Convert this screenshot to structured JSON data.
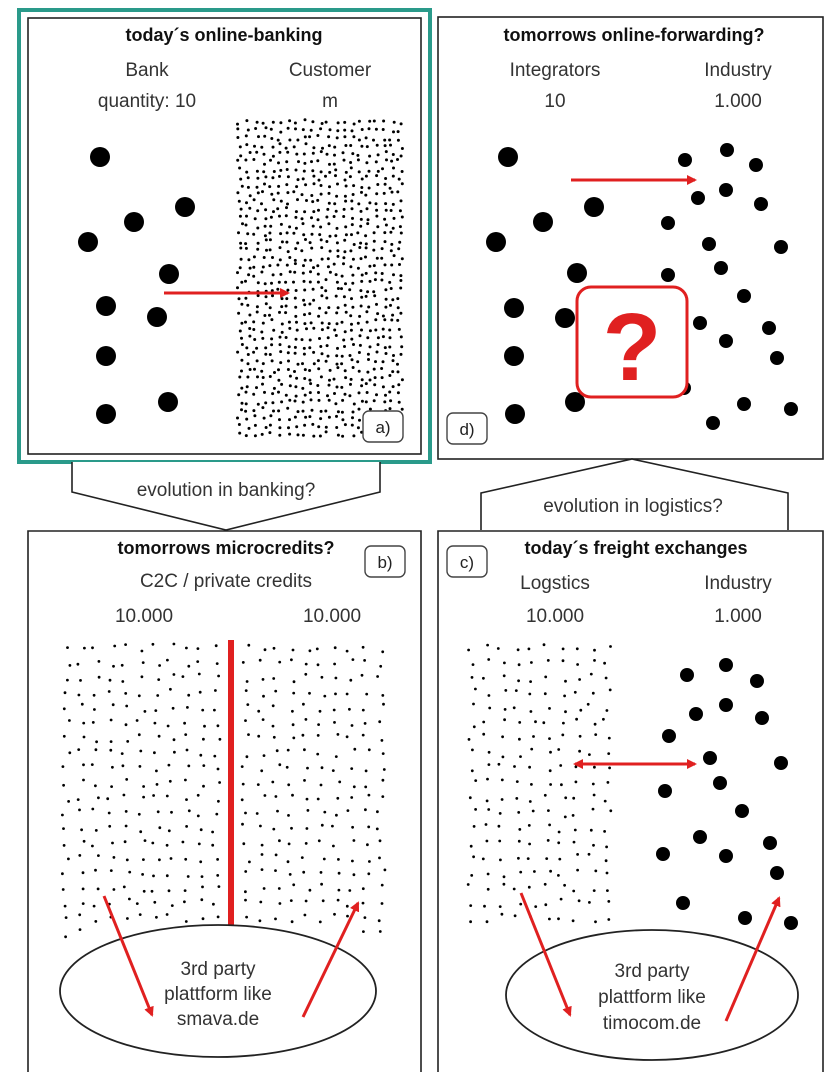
{
  "panels": {
    "a": {
      "title": "today´s online-banking",
      "left_label": "Bank",
      "right_label": "Customer",
      "left_value": "quantity: 10",
      "right_value": "m",
      "tag": "a)"
    },
    "d": {
      "title": "tomorrows online-forwarding?",
      "left_label": "Integrators",
      "right_label": "Industry",
      "left_value": "10",
      "right_value": "1.000",
      "tag": "d)",
      "question": "?"
    },
    "b": {
      "title": "tomorrows microcredits?",
      "subtitle": "C2C / private credits",
      "left_value": "10.000",
      "right_value": "10.000",
      "tag": "b)",
      "ellipse_lines": [
        "3rd party",
        "plattform like",
        "smava.de"
      ]
    },
    "c": {
      "title": "today´s freight exchanges",
      "left_label": "Logstics",
      "right_label": "Industry",
      "left_value": "10.000",
      "right_value": "1.000",
      "tag": "c)",
      "ellipse_lines": [
        "3rd party",
        "plattform like",
        "timocom.de"
      ]
    }
  },
  "connectors": {
    "banking": "evolution in banking?",
    "logistics": "evolution in logistics?"
  },
  "colors": {
    "highlight_border": "#2a9a8a",
    "arrow": "#e02020",
    "question": "#e02020",
    "dot": "#000000"
  }
}
